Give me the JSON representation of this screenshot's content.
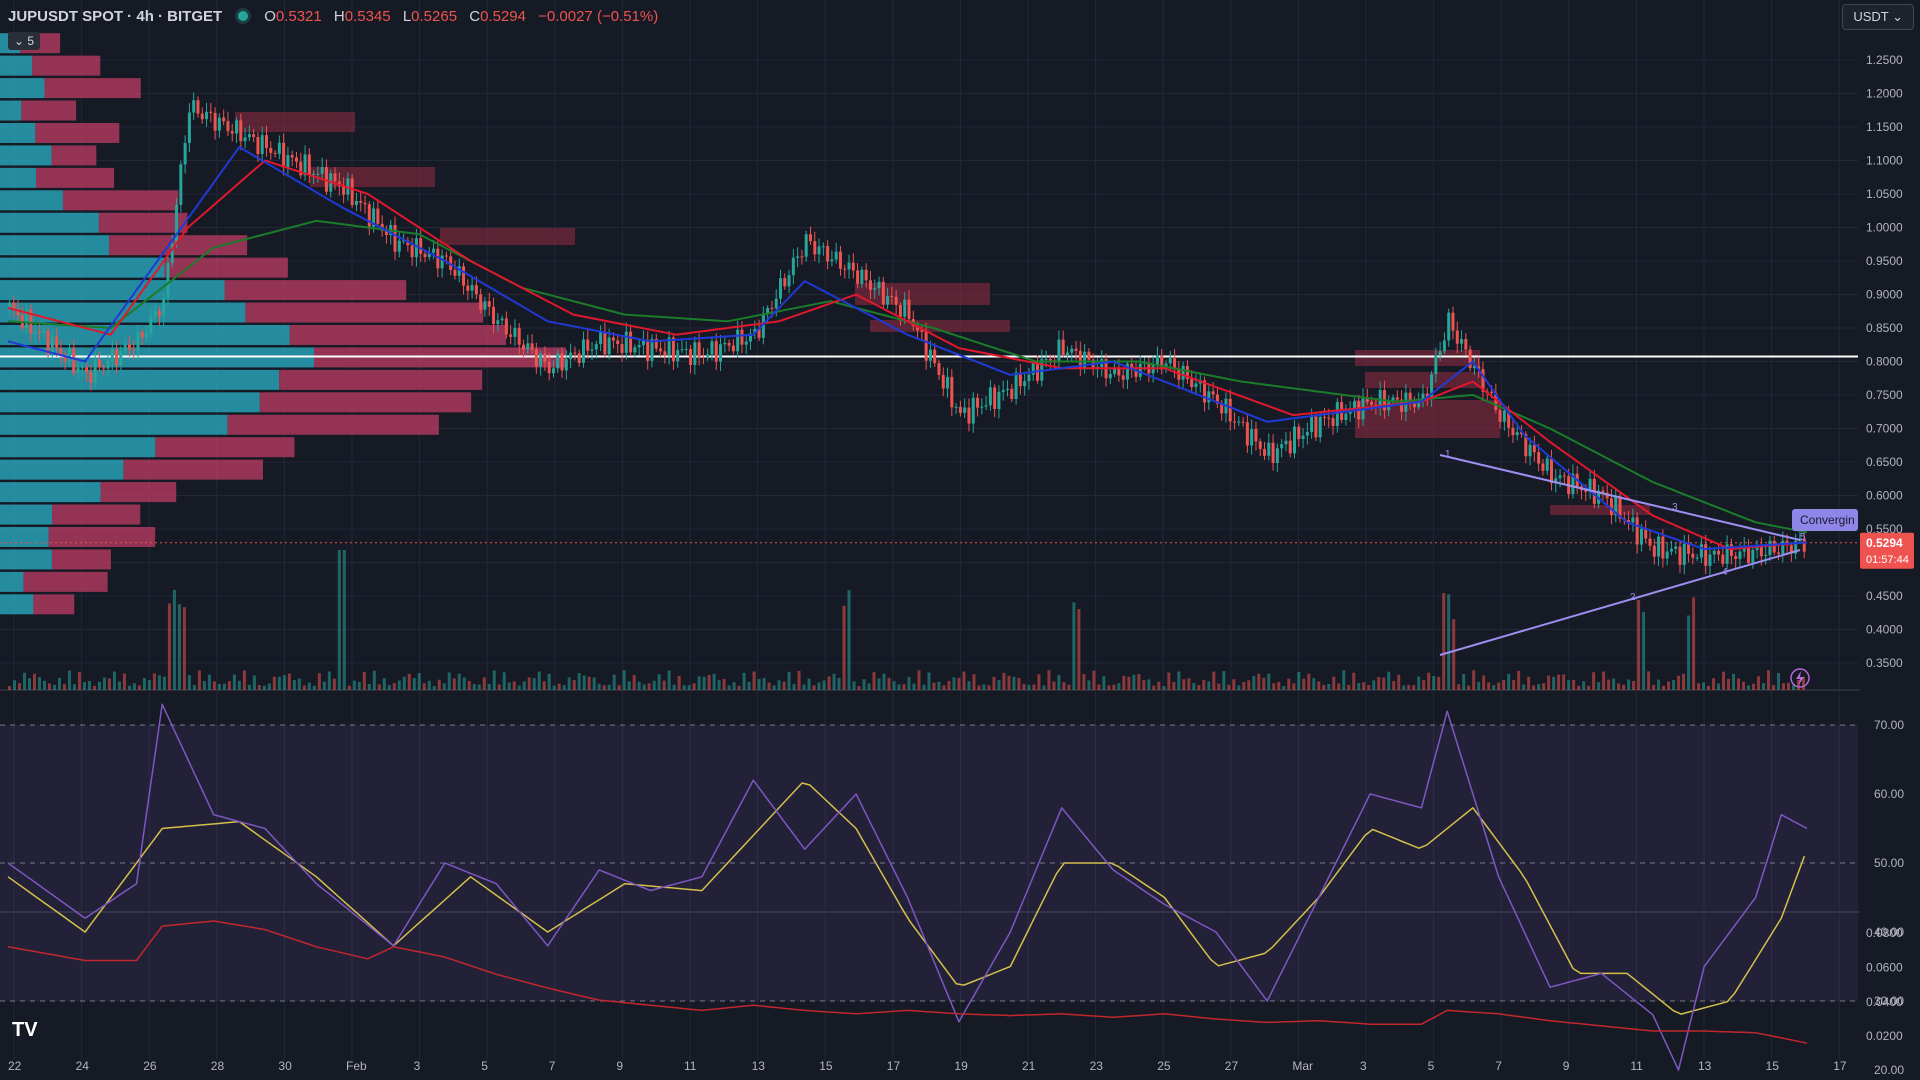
{
  "header": {
    "symbol": "JUPUSDT SPOT · 4h · BITGET",
    "open_label": "O",
    "open": "0.5321",
    "high_label": "H",
    "high": "0.5345",
    "low_label": "L",
    "low": "0.5265",
    "close_label": "C",
    "close": "0.5294",
    "change": "−0.0027 (−0.51%)"
  },
  "currency_button": "USDT ⌄",
  "collapse_button": "⌄ 5",
  "logo_text": "TV",
  "colors": {
    "bg": "#161a25",
    "up": "#26a69a",
    "down": "#ef5350",
    "grid": "#232736",
    "text": "#b2b5be",
    "ema_fast": "#1f3ad6",
    "ema_mid": "#e0182d",
    "ema_slow": "#1b7c2a",
    "rsi": "#7e57c2",
    "rsi_ma": "#d4c04a",
    "vp_up": "#29b3c7",
    "vp_down": "#d8406d",
    "lower": "#c1272d"
  },
  "chart_data": [
    {
      "type": "line",
      "subtype": "candlestick",
      "x_ticks": [
        "22",
        "24",
        "26",
        "28",
        "30",
        "Feb",
        "3",
        "5",
        "7",
        "9",
        "11",
        "13",
        "15",
        "17",
        "19",
        "21",
        "23",
        "25",
        "27",
        "Mar",
        "3",
        "5",
        "7",
        "9",
        "11",
        "13",
        "15",
        "17"
      ],
      "y_ticks": [
        "1.2500",
        "1.2000",
        "1.1500",
        "1.1000",
        "1.0500",
        "1.0000",
        "0.9500",
        "0.9000",
        "0.8500",
        "0.8000",
        "0.7500",
        "0.7000",
        "0.6500",
        "0.6000",
        "0.5500",
        "0.5000",
        "0.4500",
        "0.4000",
        "0.3500"
      ],
      "ylim": [
        0.32,
        1.3
      ],
      "price_path": [
        [
          0,
          0.88
        ],
        [
          3,
          0.78
        ],
        [
          5,
          0.83
        ],
        [
          6,
          0.89
        ],
        [
          7,
          1.18
        ],
        [
          9,
          1.14
        ],
        [
          11,
          1.1
        ],
        [
          13,
          1.06
        ],
        [
          15,
          0.98
        ],
        [
          17,
          0.95
        ],
        [
          19,
          0.86
        ],
        [
          21,
          0.79
        ],
        [
          23,
          0.83
        ],
        [
          25,
          0.82
        ],
        [
          27,
          0.81
        ],
        [
          29,
          0.84
        ],
        [
          31,
          0.98
        ],
        [
          33,
          0.93
        ],
        [
          35,
          0.87
        ],
        [
          37,
          0.72
        ],
        [
          39,
          0.76
        ],
        [
          41,
          0.82
        ],
        [
          43,
          0.78
        ],
        [
          45,
          0.8
        ],
        [
          47,
          0.74
        ],
        [
          49,
          0.66
        ],
        [
          51,
          0.71
        ],
        [
          53,
          0.74
        ],
        [
          55,
          0.74
        ],
        [
          56,
          0.86
        ],
        [
          58,
          0.72
        ],
        [
          60,
          0.63
        ],
        [
          62,
          0.6
        ],
        [
          64,
          0.52
        ],
        [
          66,
          0.51
        ],
        [
          68,
          0.515
        ],
        [
          70,
          0.53
        ]
      ],
      "ema_path": [
        [
          0,
          0.83
        ],
        [
          3,
          0.8
        ],
        [
          6,
          0.96
        ],
        [
          9,
          1.12
        ],
        [
          13,
          1.03
        ],
        [
          17,
          0.95
        ],
        [
          21,
          0.86
        ],
        [
          25,
          0.83
        ],
        [
          29,
          0.84
        ],
        [
          31,
          0.92
        ],
        [
          35,
          0.84
        ],
        [
          39,
          0.78
        ],
        [
          43,
          0.8
        ],
        [
          49,
          0.71
        ],
        [
          55,
          0.74
        ],
        [
          57,
          0.8
        ],
        [
          59,
          0.69
        ],
        [
          63,
          0.56
        ],
        [
          66,
          0.52
        ],
        [
          70,
          0.53
        ]
      ],
      "ema_mid_path": [
        [
          0,
          0.88
        ],
        [
          4,
          0.84
        ],
        [
          7,
          1.0
        ],
        [
          10,
          1.1
        ],
        [
          14,
          1.05
        ],
        [
          18,
          0.95
        ],
        [
          22,
          0.87
        ],
        [
          26,
          0.84
        ],
        [
          30,
          0.86
        ],
        [
          33,
          0.9
        ],
        [
          37,
          0.82
        ],
        [
          41,
          0.79
        ],
        [
          45,
          0.79
        ],
        [
          50,
          0.72
        ],
        [
          55,
          0.74
        ],
        [
          57,
          0.77
        ],
        [
          60,
          0.68
        ],
        [
          64,
          0.57
        ],
        [
          67,
          0.52
        ],
        [
          70,
          0.53
        ]
      ],
      "ema_slow_path": [
        [
          0,
          0.86
        ],
        [
          4,
          0.85
        ],
        [
          8,
          0.97
        ],
        [
          12,
          1.01
        ],
        [
          16,
          0.99
        ],
        [
          20,
          0.91
        ],
        [
          24,
          0.87
        ],
        [
          28,
          0.86
        ],
        [
          32,
          0.89
        ],
        [
          36,
          0.85
        ],
        [
          40,
          0.8
        ],
        [
          44,
          0.8
        ],
        [
          48,
          0.77
        ],
        [
          54,
          0.74
        ],
        [
          57,
          0.75
        ],
        [
          60,
          0.7
        ],
        [
          64,
          0.62
        ],
        [
          68,
          0.56
        ],
        [
          70,
          0.545
        ]
      ],
      "horizontal_level": 0.8075,
      "current_price_label": "0.5294",
      "countdown_label": "01:57:44",
      "pattern_label": "Convergin",
      "pattern_points": [
        "1",
        "2",
        "3",
        "4",
        "5"
      ]
    },
    {
      "type": "line",
      "subtype": "rsi",
      "y_ticks": [
        "70.00",
        "60.00",
        "50.00",
        "40.00",
        "30.00",
        "20.00"
      ],
      "ylim": [
        15,
        75
      ],
      "bands": [
        30,
        50,
        70
      ],
      "rsi_path": [
        [
          0,
          50
        ],
        [
          3,
          42
        ],
        [
          5,
          47
        ],
        [
          6,
          73
        ],
        [
          8,
          57
        ],
        [
          10,
          55
        ],
        [
          12,
          47
        ],
        [
          15,
          38
        ],
        [
          17,
          50
        ],
        [
          19,
          47
        ],
        [
          21,
          38
        ],
        [
          23,
          49
        ],
        [
          25,
          46
        ],
        [
          27,
          48
        ],
        [
          29,
          62
        ],
        [
          31,
          52
        ],
        [
          33,
          60
        ],
        [
          35,
          45
        ],
        [
          37,
          27
        ],
        [
          39,
          40
        ],
        [
          41,
          58
        ],
        [
          43,
          49
        ],
        [
          45,
          44
        ],
        [
          47,
          40
        ],
        [
          49,
          30
        ],
        [
          51,
          45
        ],
        [
          53,
          60
        ],
        [
          55,
          58
        ],
        [
          56,
          72
        ],
        [
          58,
          48
        ],
        [
          60,
          32
        ],
        [
          62,
          34
        ],
        [
          64,
          28
        ],
        [
          65,
          20
        ],
        [
          66,
          35
        ],
        [
          68,
          45
        ],
        [
          69,
          57
        ],
        [
          70,
          55
        ]
      ],
      "rsi_ma_path": [
        [
          0,
          48
        ],
        [
          3,
          40
        ],
        [
          6,
          55
        ],
        [
          9,
          56
        ],
        [
          12,
          48
        ],
        [
          15,
          38
        ],
        [
          18,
          48
        ],
        [
          21,
          40
        ],
        [
          24,
          47
        ],
        [
          27,
          46
        ],
        [
          29,
          54
        ],
        [
          31,
          62
        ],
        [
          33,
          55
        ],
        [
          35,
          42
        ],
        [
          37,
          32
        ],
        [
          39,
          35
        ],
        [
          41,
          50
        ],
        [
          43,
          50
        ],
        [
          45,
          45
        ],
        [
          47,
          35
        ],
        [
          49,
          37
        ],
        [
          51,
          45
        ],
        [
          53,
          55
        ],
        [
          55,
          52
        ],
        [
          57,
          58
        ],
        [
          59,
          48
        ],
        [
          61,
          34
        ],
        [
          63,
          34
        ],
        [
          65,
          28
        ],
        [
          67,
          30
        ],
        [
          69,
          42
        ],
        [
          70,
          52
        ]
      ]
    },
    {
      "type": "line",
      "subtype": "oscillator",
      "y_ticks": [
        "0.0800",
        "0.0600",
        "0.0400",
        "0.0200"
      ],
      "ylim": [
        0.014,
        0.092
      ],
      "path": [
        [
          0,
          0.072
        ],
        [
          3,
          0.064
        ],
        [
          5,
          0.064
        ],
        [
          6,
          0.084
        ],
        [
          8,
          0.087
        ],
        [
          10,
          0.082
        ],
        [
          12,
          0.072
        ],
        [
          14,
          0.065
        ],
        [
          15,
          0.072
        ],
        [
          17,
          0.066
        ],
        [
          19,
          0.056
        ],
        [
          21,
          0.048
        ],
        [
          23,
          0.041
        ],
        [
          25,
          0.038
        ],
        [
          27,
          0.035
        ],
        [
          29,
          0.038
        ],
        [
          31,
          0.035
        ],
        [
          33,
          0.033
        ],
        [
          35,
          0.035
        ],
        [
          37,
          0.033
        ],
        [
          39,
          0.032
        ],
        [
          41,
          0.033
        ],
        [
          43,
          0.031
        ],
        [
          45,
          0.033
        ],
        [
          47,
          0.03
        ],
        [
          49,
          0.028
        ],
        [
          51,
          0.029
        ],
        [
          53,
          0.027
        ],
        [
          55,
          0.027
        ],
        [
          56,
          0.035
        ],
        [
          58,
          0.033
        ],
        [
          60,
          0.029
        ],
        [
          62,
          0.026
        ],
        [
          64,
          0.023
        ],
        [
          66,
          0.023
        ],
        [
          68,
          0.022
        ],
        [
          70,
          0.016
        ]
      ]
    }
  ]
}
